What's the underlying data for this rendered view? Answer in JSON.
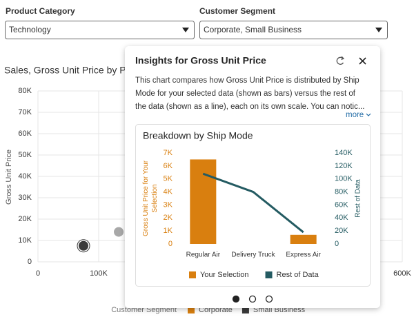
{
  "filters": [
    {
      "label": "Product Category",
      "value": "Technology"
    },
    {
      "label": "Customer Segment",
      "value": "Corporate, Small Business"
    }
  ],
  "background_chart": {
    "type": "scatter",
    "title": "Sales, Gross Unit Price by Pro",
    "y_label": "Gross Unit Price",
    "xlim": [
      0,
      600000
    ],
    "ylim": [
      0,
      80000
    ],
    "xticks": [
      0,
      {
        "value": 100000,
        "label": "100K"
      },
      {
        "value": 600000,
        "label": "600K"
      }
    ],
    "yticks": [
      0,
      {
        "value": 10000,
        "label": "10K"
      },
      {
        "value": 20000,
        "label": "20K"
      },
      {
        "value": 30000,
        "label": "30K"
      },
      {
        "value": 40000,
        "label": "40K"
      },
      {
        "value": 50000,
        "label": "50K"
      },
      {
        "value": 60000,
        "label": "60K"
      },
      {
        "value": 70000,
        "label": "70K"
      },
      {
        "value": 80000,
        "label": "80K"
      }
    ],
    "grid": true,
    "points": [
      {
        "x": 75000,
        "y": 7500,
        "color": "#3a3a3a"
      },
      {
        "x": 133000,
        "y": 14000,
        "color": "#a8a8a8"
      }
    ],
    "legend": {
      "title": "Customer Segment",
      "items": [
        {
          "name": "Corporate",
          "color": "#d97f0f"
        },
        {
          "name": "Small Business",
          "color": "#3a3a3a"
        }
      ]
    }
  },
  "popup": {
    "title": "Insights for Gross Unit Price",
    "text_lines": [
      "This chart compares how Gross Unit Price is distributed by Ship",
      "Mode for your selected data (shown as bars) versus the rest of",
      "the data (shown as a line), each on its own scale. You can notic..."
    ],
    "more": "more",
    "chart": {
      "type": "bar-line",
      "title": "Breakdown by Ship Mode",
      "categories": [
        "Regular Air",
        "Delivery Truck",
        "Express Air"
      ],
      "y_label": "Gross Unit Price for Your Selection",
      "y2_label": "Rest of Data",
      "ylim": [
        0,
        7000
      ],
      "yticks": [
        0,
        {
          "value": 1000,
          "label": "1K"
        },
        {
          "value": 2000,
          "label": "2K"
        },
        {
          "value": 3000,
          "label": "3K"
        },
        {
          "value": 4000,
          "label": "4K"
        },
        {
          "value": 5000,
          "label": "5K"
        },
        {
          "value": 6000,
          "label": "6K"
        },
        {
          "value": 7000,
          "label": "7K"
        }
      ],
      "y2lim": [
        0,
        140000
      ],
      "y2ticks": [
        0,
        {
          "value": 20000,
          "label": "20K"
        },
        {
          "value": 40000,
          "label": "40K"
        },
        {
          "value": 60000,
          "label": "60K"
        },
        {
          "value": 80000,
          "label": "80K"
        },
        {
          "value": 100000,
          "label": "100K"
        },
        {
          "value": 120000,
          "label": "120K"
        },
        {
          "value": 140000,
          "label": "140K"
        }
      ],
      "series": [
        {
          "name": "Your Selection",
          "type": "bar",
          "color": "#d97f0f",
          "values": [
            6500,
            null,
            700
          ]
        },
        {
          "name": "Rest of Data",
          "type": "line",
          "axis": "y2",
          "color": "#245b62",
          "values": [
            108000,
            80000,
            18000
          ]
        }
      ]
    },
    "pages": 3,
    "current_page": 0
  }
}
